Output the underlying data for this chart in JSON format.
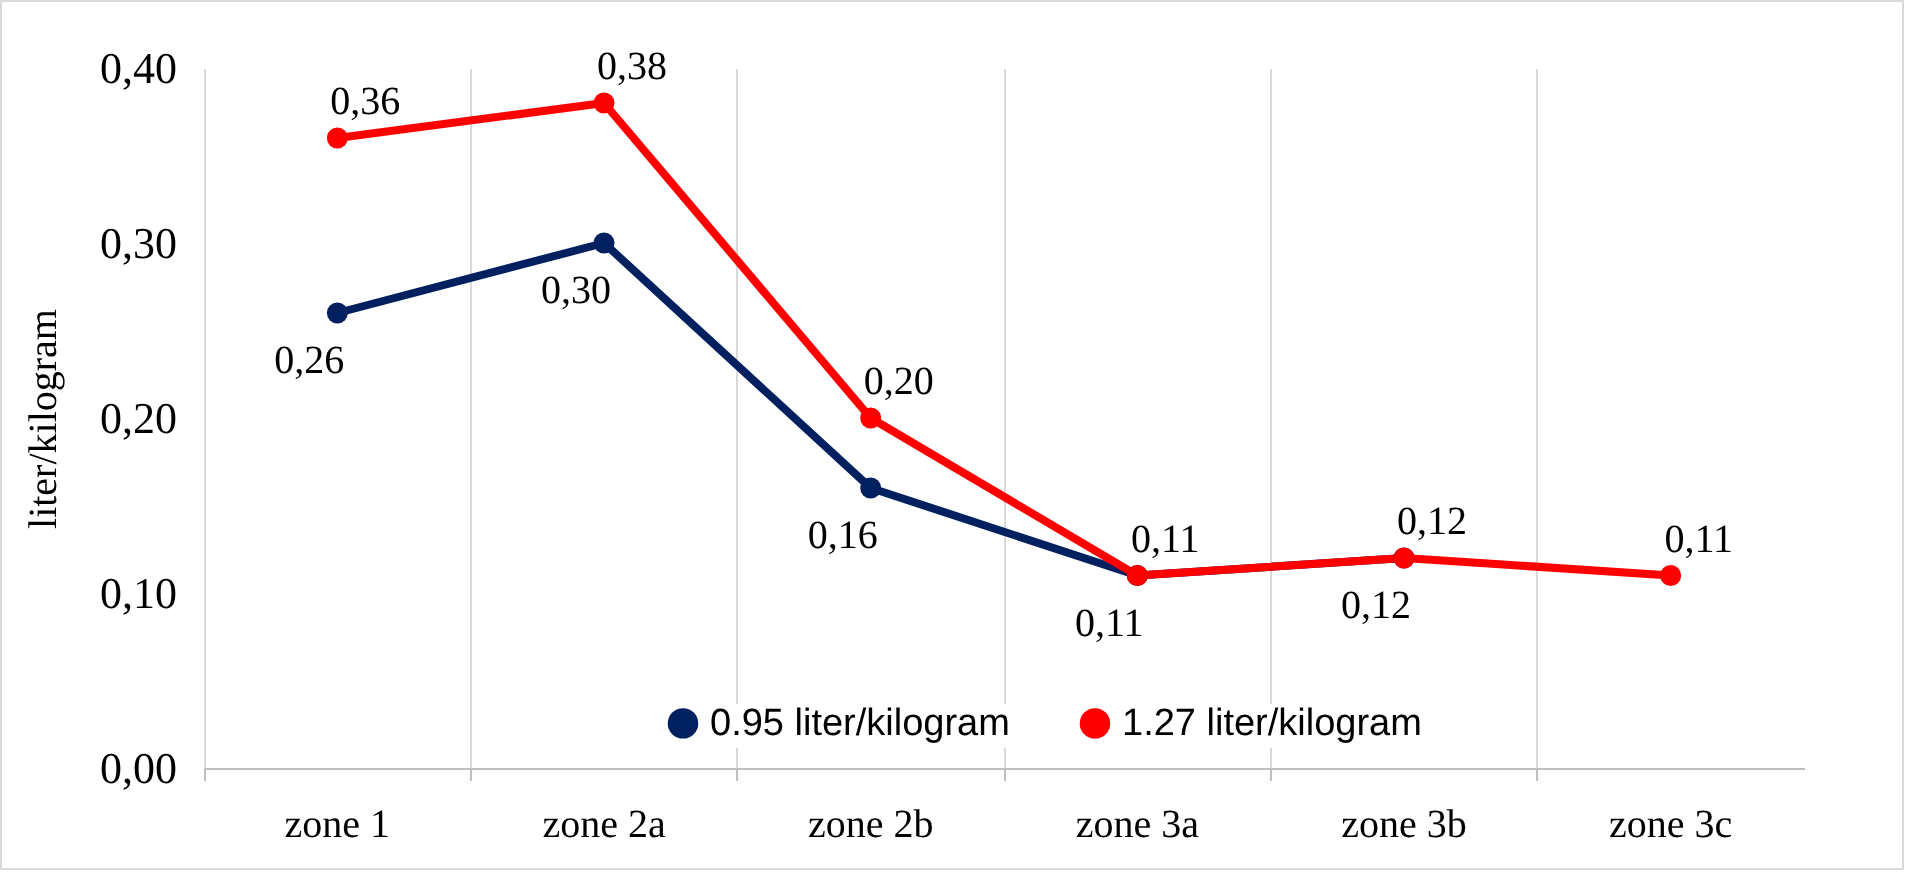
{
  "chart_data": {
    "type": "line",
    "ylabel": "liter/kilogram",
    "categories": [
      "zone 1",
      "zone 2a",
      "zone 2b",
      "zone 3a",
      "zone 3b",
      "zone 3c"
    ],
    "series": [
      {
        "name": "0.95 liter/kilogram",
        "color": "#002060",
        "values": [
          0.26,
          0.3,
          0.16,
          0.11,
          0.12,
          null
        ],
        "value_labels": [
          "0,26",
          "0,30",
          "0,16",
          "0,11",
          "0,12",
          null
        ]
      },
      {
        "name": "1.27 liter/kilogram",
        "color": "#ff0000",
        "values": [
          0.36,
          0.38,
          0.2,
          0.11,
          0.12,
          0.11
        ],
        "value_labels": [
          "0,36",
          "0,38",
          "0,20",
          "0,11",
          "0,12",
          "0,11"
        ]
      }
    ],
    "ylim": [
      0,
      0.4
    ],
    "yticks": [
      {
        "value": 0,
        "label": "0,00"
      },
      {
        "value": 0.1,
        "label": "0,10"
      },
      {
        "value": 0.2,
        "label": "0,20"
      },
      {
        "value": 0.3,
        "label": "0,30"
      },
      {
        "value": 0.4,
        "label": "0,40"
      }
    ],
    "grid": "x",
    "legend": "bottom",
    "marker": "circle",
    "line_style": "solid"
  }
}
